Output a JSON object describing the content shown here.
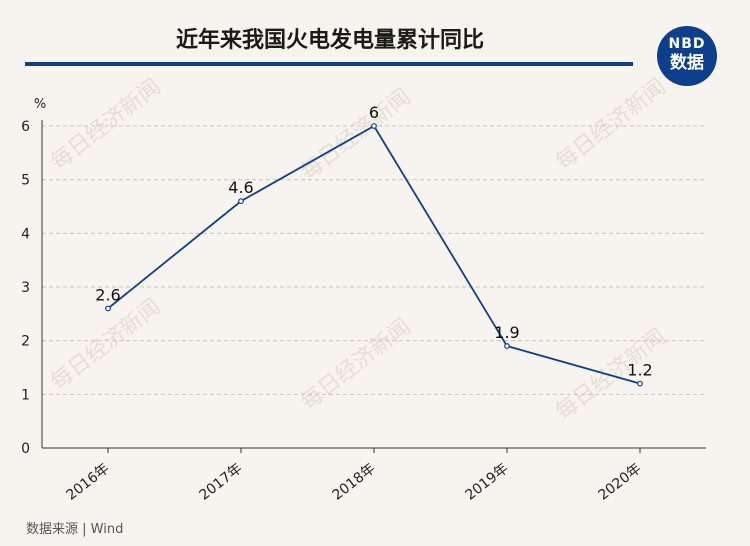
{
  "header": {
    "title": "近年来我国火电发电量累计同比",
    "badge_top": "NBD",
    "badge_bottom": "数据"
  },
  "colors": {
    "accent": "#0d3f8c",
    "background": "#f7f4ef",
    "grid": "#c8c4bc"
  },
  "watermark": "每日经济新闻",
  "chart_data": {
    "type": "line",
    "title": "近年来我国火电发电量累计同比",
    "y_unit": "%",
    "categories": [
      "2016年",
      "2017年",
      "2018年",
      "2019年",
      "2020年"
    ],
    "values": [
      2.6,
      4.6,
      6,
      1.9,
      1.2
    ],
    "data_labels": [
      "2.6",
      "4.6",
      "6",
      "1.9",
      "1.2"
    ],
    "ylim": [
      0,
      6
    ],
    "yticks": [
      0,
      1,
      2,
      3,
      4,
      5,
      6
    ],
    "grid": true,
    "legend": "none"
  },
  "footer": {
    "source": "数据来源 | Wind"
  }
}
